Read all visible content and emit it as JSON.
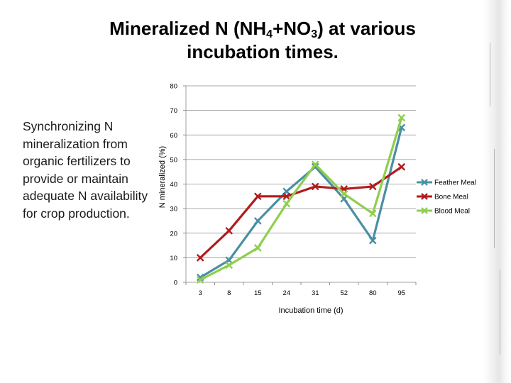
{
  "slide": {
    "title_parts": {
      "a": "Mineralized N (NH",
      "sub1": "4",
      "b": "+NO",
      "sub2": "3",
      "c": ") at various incubation times."
    },
    "side_text": "Synchronizing N mineralization from organic fertilizers to provide or maintain adequate N availability for crop production."
  },
  "chart_data": {
    "type": "line",
    "categories": [
      "3",
      "8",
      "15",
      "24",
      "31",
      "52",
      "80",
      "95"
    ],
    "ylabel": "N mineralized (%)",
    "xlabel": "Incubation time (d)",
    "ylim": [
      0,
      80
    ],
    "yticks": [
      "0",
      "10",
      "20",
      "30",
      "40",
      "50",
      "60",
      "70",
      "80"
    ],
    "grid": "horizontal",
    "legend_position": "right",
    "series": [
      {
        "name": "Feather Meal",
        "color": "#4a8fa3",
        "values": [
          2,
          9,
          25,
          37,
          47,
          34,
          17,
          63
        ]
      },
      {
        "name": "Bone Meal",
        "color": "#b01c1c",
        "values": [
          10,
          21,
          35,
          35,
          39,
          38,
          39,
          47
        ]
      },
      {
        "name": "Blood Meal",
        "color": "#8fce4e",
        "values": [
          1,
          7,
          14,
          32,
          48,
          36,
          28,
          67
        ]
      }
    ]
  }
}
